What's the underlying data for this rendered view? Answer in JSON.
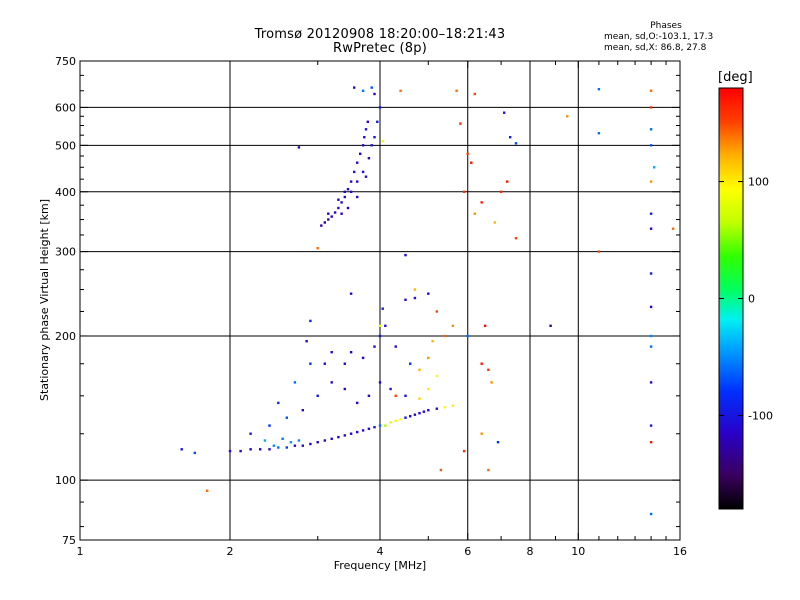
{
  "title": "Tromsø 20120908 18:20:00–18:21:43",
  "subtitle": "RwPretec (8p)",
  "phases": {
    "heading": "Phases",
    "line1": "mean, sd,O:-103.1, 17.3",
    "line2": "mean, sd,X:  86.8, 27.8"
  },
  "colorbar": {
    "unit": "[deg]",
    "range": [
      -180,
      180
    ],
    "ticks": [
      100,
      0,
      -100
    ],
    "tick_labels": [
      "100",
      "0",
      "-100"
    ]
  },
  "chart_data": {
    "type": "scatter",
    "xlabel": "Frequency [MHz]",
    "ylabel": "Stationary phase Virtual Height [km]",
    "xscale": "log",
    "yscale": "log",
    "xlim": [
      1,
      16
    ],
    "ylim": [
      75,
      750
    ],
    "x_major_ticks": [
      1,
      2,
      4,
      6,
      8,
      10,
      16
    ],
    "x_tick_labels": [
      "1",
      "2",
      "4",
      "6",
      "8",
      "10",
      "16"
    ],
    "y_major_ticks": [
      75,
      100,
      200,
      300,
      400,
      500,
      600,
      750
    ],
    "y_tick_labels": [
      "75",
      "100",
      "200",
      "300",
      "400",
      "500",
      "600",
      "750"
    ],
    "x_grid": [
      2,
      4,
      6,
      8,
      10
    ],
    "y_grid": [
      100,
      200,
      300,
      400,
      500,
      600
    ],
    "grid": true,
    "color_encodes": "phase [deg]",
    "colormap": "rainbow (black=-180 to red=+180)",
    "series": [
      {
        "points": [
          [
            3.05,
            340,
            -125
          ],
          [
            3.1,
            345,
            -120
          ],
          [
            3.15,
            350,
            -118
          ],
          [
            3.2,
            355,
            -115
          ],
          [
            3.25,
            362,
            -112
          ],
          [
            3.3,
            370,
            -110
          ],
          [
            3.35,
            380,
            -108
          ],
          [
            3.4,
            390,
            -112
          ],
          [
            3.45,
            405,
            -115
          ],
          [
            3.5,
            420,
            -110
          ],
          [
            3.55,
            440,
            -106
          ],
          [
            3.6,
            460,
            -108
          ],
          [
            3.65,
            480,
            -112
          ],
          [
            3.7,
            500,
            -105
          ],
          [
            3.72,
            520,
            -108
          ],
          [
            3.75,
            540,
            -104
          ],
          [
            3.78,
            560,
            -110
          ],
          [
            3.15,
            360,
            -122
          ],
          [
            3.3,
            385,
            -118
          ],
          [
            3.5,
            400,
            -108
          ],
          [
            3.6,
            420,
            -110
          ],
          [
            3.7,
            440,
            -104
          ],
          [
            3.8,
            470,
            -106
          ],
          [
            3.85,
            500,
            -102
          ],
          [
            3.9,
            520,
            -100
          ],
          [
            3.95,
            560,
            -98
          ],
          [
            4.0,
            600,
            -96
          ],
          [
            3.9,
            640,
            -115
          ],
          [
            3.55,
            660,
            -110
          ],
          [
            3.7,
            650,
            -60
          ],
          [
            3.85,
            660,
            -70
          ],
          [
            3.75,
            430,
            -110
          ],
          [
            3.35,
            360,
            -120
          ],
          [
            3.45,
            370,
            -115
          ],
          [
            3.6,
            390,
            -112
          ],
          [
            3.4,
            400,
            -118
          ],
          [
            4.4,
            650,
            140
          ],
          [
            4.05,
            510,
            80
          ],
          [
            3.0,
            305,
            140
          ],
          [
            2.75,
            495,
            -110
          ]
        ]
      },
      {
        "points": [
          [
            1.6,
            116,
            -100
          ],
          [
            1.7,
            114,
            -70
          ],
          [
            2.0,
            115,
            -105
          ],
          [
            2.1,
            115,
            -110
          ],
          [
            2.2,
            116,
            -115
          ],
          [
            2.3,
            116,
            -110
          ],
          [
            2.4,
            116,
            -108
          ],
          [
            2.5,
            117,
            -60
          ],
          [
            2.6,
            117,
            -75
          ],
          [
            2.7,
            118,
            -110
          ],
          [
            2.8,
            118,
            -105
          ],
          [
            2.9,
            119,
            -115
          ],
          [
            3.0,
            120,
            -118
          ],
          [
            3.1,
            121,
            -112
          ],
          [
            3.2,
            122,
            -110
          ],
          [
            3.3,
            123,
            -115
          ],
          [
            3.4,
            124,
            -108
          ],
          [
            3.5,
            125,
            -112
          ],
          [
            3.6,
            126,
            -110
          ],
          [
            3.7,
            127,
            -108
          ],
          [
            3.8,
            128,
            -105
          ],
          [
            3.9,
            129,
            -110
          ],
          [
            4.0,
            130,
            -60
          ],
          [
            4.1,
            130,
            60
          ],
          [
            4.2,
            132,
            80
          ],
          [
            4.3,
            133,
            90
          ],
          [
            4.4,
            134,
            95
          ],
          [
            4.5,
            135,
            -100
          ],
          [
            4.6,
            136,
            -105
          ],
          [
            4.7,
            137,
            -108
          ],
          [
            4.8,
            138,
            -110
          ],
          [
            4.9,
            139,
            -110
          ],
          [
            5.0,
            140,
            -105
          ],
          [
            5.2,
            141,
            -100
          ],
          [
            5.4,
            142,
            90
          ],
          [
            5.6,
            143,
            100
          ],
          [
            2.2,
            125,
            -100
          ],
          [
            2.4,
            130,
            -80
          ],
          [
            2.6,
            135,
            -70
          ],
          [
            2.8,
            140,
            -110
          ],
          [
            3.0,
            150,
            -100
          ],
          [
            3.2,
            160,
            -110
          ],
          [
            3.4,
            155,
            -112
          ],
          [
            3.6,
            145,
            -115
          ],
          [
            3.8,
            150,
            -105
          ],
          [
            4.0,
            160,
            -110
          ],
          [
            4.2,
            155,
            -100
          ],
          [
            4.5,
            150,
            -102
          ],
          [
            4.8,
            148,
            110
          ],
          [
            5.0,
            155,
            100
          ],
          [
            5.2,
            165,
            95
          ],
          [
            2.5,
            145,
            -90
          ],
          [
            2.7,
            160,
            -60
          ],
          [
            2.9,
            175,
            -80
          ],
          [
            2.85,
            195,
            -110
          ],
          [
            2.9,
            215,
            -90
          ],
          [
            3.1,
            175,
            -110
          ],
          [
            3.2,
            185,
            -112
          ],
          [
            3.4,
            175,
            -110
          ],
          [
            3.5,
            185,
            -115
          ],
          [
            3.7,
            180,
            -112
          ],
          [
            3.9,
            190,
            -110
          ],
          [
            4.0,
            200,
            -100
          ],
          [
            4.1,
            210,
            -105
          ],
          [
            4.3,
            190,
            -110
          ],
          [
            4.6,
            175,
            -80
          ],
          [
            4.8,
            170,
            120
          ],
          [
            5.0,
            180,
            130
          ],
          [
            5.2,
            225,
            150
          ],
          [
            4.5,
            238,
            -110
          ],
          [
            4.7,
            240,
            -105
          ],
          [
            5.0,
            245,
            -108
          ],
          [
            4.5,
            295,
            -110
          ],
          [
            3.5,
            245,
            -110
          ],
          [
            4.05,
            228,
            -95
          ],
          [
            4.0,
            210,
            80
          ],
          [
            2.45,
            118,
            -50
          ],
          [
            2.55,
            122,
            -55
          ],
          [
            2.65,
            120,
            -45
          ],
          [
            2.35,
            121,
            -40
          ],
          [
            2.75,
            121,
            -50
          ],
          [
            1.8,
            95,
            140
          ],
          [
            6.6,
            105,
            140
          ],
          [
            4.3,
            150,
            150
          ],
          [
            5.9,
            115,
            160
          ],
          [
            5.3,
            105,
            145
          ]
        ]
      },
      {
        "points": [
          [
            5.7,
            650,
            140
          ],
          [
            6.2,
            640,
            150
          ],
          [
            5.8,
            555,
            160
          ],
          [
            6.0,
            480,
            150
          ],
          [
            5.9,
            400,
            160
          ],
          [
            6.4,
            380,
            165
          ],
          [
            6.2,
            360,
            130
          ],
          [
            7.2,
            420,
            170
          ],
          [
            7.0,
            400,
            165
          ],
          [
            7.5,
            320,
            150
          ],
          [
            6.8,
            345,
            120
          ],
          [
            7.3,
            520,
            -90
          ],
          [
            7.5,
            505,
            -70
          ],
          [
            7.1,
            585,
            -100
          ],
          [
            6.0,
            200,
            -60
          ],
          [
            6.5,
            210,
            175
          ],
          [
            6.4,
            175,
            170
          ],
          [
            6.6,
            170,
            160
          ],
          [
            6.7,
            160,
            130
          ],
          [
            6.4,
            125,
            130
          ],
          [
            6.9,
            120,
            -80
          ],
          [
            8.8,
            210,
            -130
          ],
          [
            9.5,
            575,
            130
          ],
          [
            11.0,
            655,
            -60
          ],
          [
            11.0,
            530,
            -60
          ],
          [
            11.0,
            300,
            150
          ],
          [
            14.0,
            650,
            140
          ],
          [
            14.0,
            600,
            160
          ],
          [
            14.0,
            540,
            -60
          ],
          [
            14.0,
            500,
            -70
          ],
          [
            14.2,
            450,
            -40
          ],
          [
            14.0,
            420,
            130
          ],
          [
            14.0,
            360,
            -90
          ],
          [
            14.0,
            335,
            -110
          ],
          [
            14.0,
            270,
            -100
          ],
          [
            14.0,
            230,
            -110
          ],
          [
            14.0,
            200,
            -50
          ],
          [
            14.0,
            190,
            -60
          ],
          [
            14.0,
            160,
            -110
          ],
          [
            14.0,
            120,
            170
          ],
          [
            14.0,
            85,
            -60
          ],
          [
            14.0,
            130,
            -100
          ],
          [
            15.5,
            335,
            140
          ],
          [
            6.1,
            460,
            175
          ],
          [
            5.4,
            200,
            140
          ],
          [
            5.6,
            210,
            130
          ],
          [
            5.1,
            195,
            120
          ],
          [
            4.7,
            250,
            120
          ]
        ]
      }
    ]
  }
}
